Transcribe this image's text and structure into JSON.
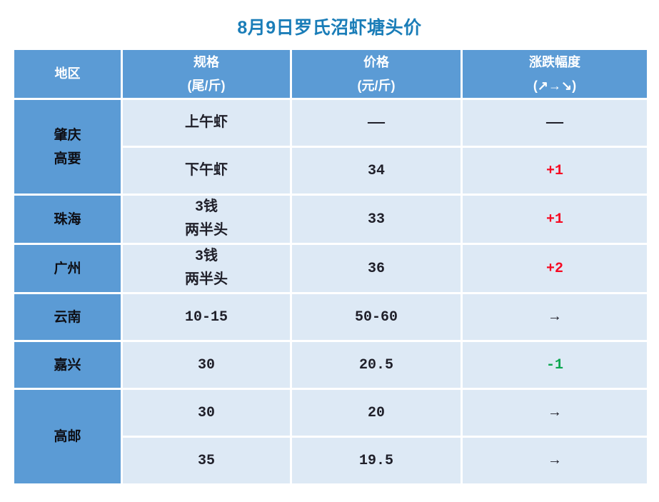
{
  "title": {
    "text": "8月9日罗氏沼虾塘头价",
    "color": "#1a7db8"
  },
  "colors": {
    "header_bg": "#5b9bd5",
    "region_bg": "#5b9bd5",
    "cell_bg": "#dde9f5",
    "gridline": "#ffffff",
    "header_text": "#ffffff",
    "body_text": "#20202a",
    "up_red": "#f60a23",
    "down_green": "#0ca750"
  },
  "header": {
    "region": "地区",
    "spec_line1": "规格",
    "spec_line2": "(尾/斤)",
    "price_line1": "价格",
    "price_line2": "(元/斤)",
    "change_line1": "涨跌幅度",
    "change_line2": "(↗→↘)"
  },
  "regions": [
    {
      "lines": [
        "肇庆",
        "高要"
      ]
    },
    {
      "lines": [
        "珠海"
      ]
    },
    {
      "lines": [
        "广州"
      ]
    },
    {
      "lines": [
        "云南"
      ]
    },
    {
      "lines": [
        "嘉兴"
      ]
    },
    {
      "lines": [
        "高邮"
      ]
    }
  ],
  "rows": [
    {
      "spec_lines": [
        "上午虾"
      ],
      "price": "——",
      "change": "——",
      "change_color": "#20202a"
    },
    {
      "spec_lines": [
        "下午虾"
      ],
      "price": "34",
      "change": "+1",
      "change_color": "#f60a23"
    },
    {
      "spec_lines": [
        "3钱",
        "两半头"
      ],
      "price": "33",
      "change": "+1",
      "change_color": "#f60a23"
    },
    {
      "spec_lines": [
        "3钱",
        "两半头"
      ],
      "price": "36",
      "change": "+2",
      "change_color": "#f60a23"
    },
    {
      "spec_lines": [
        "10-15"
      ],
      "price": "50-60",
      "change": "→",
      "change_color": "#20202a"
    },
    {
      "spec_lines": [
        "30"
      ],
      "price": "20.5",
      "change": "-1",
      "change_color": "#0ca750"
    },
    {
      "spec_lines": [
        "30"
      ],
      "price": "20",
      "change": "→",
      "change_color": "#20202a"
    },
    {
      "spec_lines": [
        "35"
      ],
      "price": "19.5",
      "change": "→",
      "change_color": "#20202a"
    }
  ],
  "chart_data": {
    "type": "table",
    "title": "8月9日罗氏沼虾塘头价",
    "columns": [
      "地区",
      "规格(尾/斤)",
      "价格(元/斤)",
      "涨跌幅度(↗→↘)"
    ],
    "rows": [
      [
        "肇庆高要",
        "上午虾",
        "——",
        "——"
      ],
      [
        "肇庆高要",
        "下午虾",
        "34",
        "+1"
      ],
      [
        "珠海",
        "3钱两半头",
        "33",
        "+1"
      ],
      [
        "广州",
        "3钱两半头",
        "36",
        "+2"
      ],
      [
        "云南",
        "10-15",
        "50-60",
        "→"
      ],
      [
        "嘉兴",
        "30",
        "20.5",
        "-1"
      ],
      [
        "高邮",
        "30",
        "20",
        "→"
      ],
      [
        "高邮",
        "35",
        "19.5",
        "→"
      ]
    ]
  }
}
